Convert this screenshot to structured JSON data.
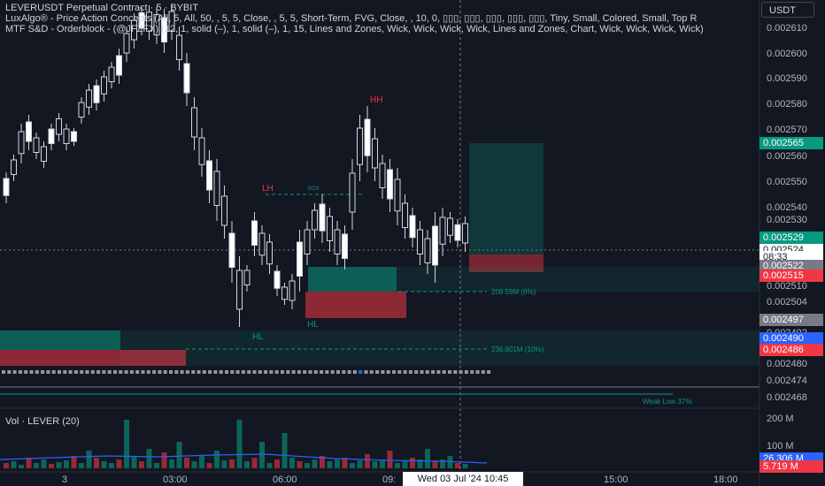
{
  "symbol_line": "LEVERUSDT Perpetual Contract · 5 · BYBIT",
  "indicator_1": "LuxAlgo® - Price Action Concepts (All, 5, All, 50, , 5, 5, Close, , 5, 5, Short-Term, FVG, Close, , 10, 0, ▯▯▯, ▯▯▯, ▯▯▯, ▯▯▯, ▯▯▯, Tiny, Small, Colored, Small, Top R",
  "indicator_2": "MTF S&D - Orderblock - (@JFZFX) (12, 1, solid (–), 1, solid (–), 1, 15, Lines and Zones, Wick, Wick, Wick, Wick, Lines and Zones, Chart, Wick, Wick, Wick, Wick)",
  "currency_button": "USDT",
  "volume_legend": "Vol · LEVER (20)",
  "price_axis": [
    "0.002610",
    "0.002600",
    "0.002590",
    "0.002580",
    "0.002570",
    "0.002560",
    "0.002550",
    "0.002540",
    "0.002530",
    "0.002510",
    "0.002504",
    "0.002492",
    "0.002480",
    "0.002474",
    "0.002468"
  ],
  "volume_axis": [
    "200 M",
    "100 M"
  ],
  "time_axis": [
    "3",
    "03:00",
    "06:00",
    "09:",
    "15:00",
    "18:00"
  ],
  "crosshair_time": "Wed 03 Jul '24   10:45",
  "badges": {
    "b1": {
      "text": "0.002565",
      "color": "#089981"
    },
    "b2": {
      "text": "0.002529",
      "color": "#089981"
    },
    "b3a": {
      "text": "0.002524",
      "color": "#ffffff"
    },
    "b3b": {
      "text": "08:33",
      "color": "#ffffff"
    },
    "b4": {
      "text": "0.002522",
      "color": "#787b86"
    },
    "b5": {
      "text": "0.002515",
      "color": "#f23645"
    },
    "b6": {
      "text": "0.002497",
      "color": "#787b86"
    },
    "b7": {
      "text": "0.002490",
      "color": "#2962ff"
    },
    "b8": {
      "text": "0.002486",
      "color": "#f23645"
    },
    "v1": {
      "text": "26.306 M",
      "color": "#2962ff"
    },
    "v2": {
      "text": "5.719 M",
      "color": "#f23645"
    }
  },
  "chart_labels": {
    "hh": "HH",
    "lh": "LH",
    "hl_left": "HL",
    "hl_right": "HL",
    "bos": "BOS",
    "vol_zone_1": "208.59M (8%)",
    "vol_zone_2": "236.601M (10%)",
    "weak_low": "Weak Low 37%"
  },
  "colors": {
    "up": "#ffffff",
    "down": "#ffffff",
    "bg": "#131722",
    "bull_zone": "#089981",
    "bear_zone": "#f23645"
  }
}
